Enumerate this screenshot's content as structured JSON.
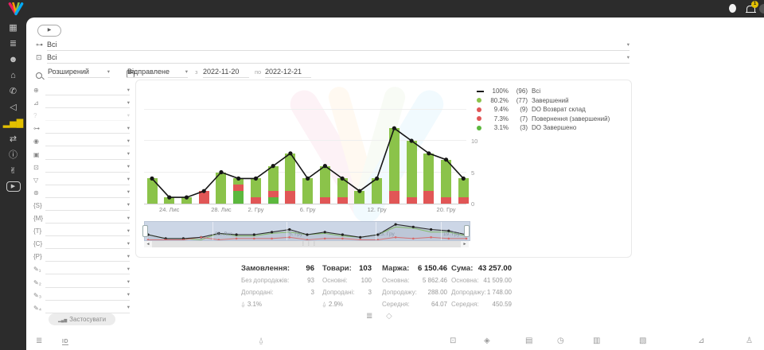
{
  "topbar": {
    "notification_count": "1"
  },
  "sidebar": {
    "items": [
      {
        "name": "dashboard",
        "glyph": "▦"
      },
      {
        "name": "orders",
        "glyph": "≣"
      },
      {
        "name": "customers",
        "glyph": "☻"
      },
      {
        "name": "company",
        "glyph": "⌂"
      },
      {
        "name": "calls",
        "glyph": "✆"
      },
      {
        "name": "announcements",
        "glyph": "◁"
      },
      {
        "name": "analytics",
        "glyph": "▂▅▇",
        "active": true
      },
      {
        "name": "integrations",
        "glyph": "⇄"
      },
      {
        "name": "info",
        "glyph": "ⓘ"
      },
      {
        "name": "partners",
        "glyph": "✌"
      },
      {
        "name": "video",
        "glyph": "▶",
        "boxed": true
      }
    ]
  },
  "header": {
    "play_glyph": "▶",
    "row1": {
      "glyph": "⊶",
      "value": "Всі"
    },
    "row2": {
      "glyph": "⊡",
      "value": "Всі"
    },
    "search": {
      "mode": "Розширений",
      "type": "Відправлене",
      "from_label": "з",
      "date_from": "2022-11-20",
      "to_label": "по",
      "date_to": "2022-12-21"
    }
  },
  "filters": {
    "apply_label": "Застосувати",
    "items": [
      {
        "icon": "globe-icon",
        "glyph": "⊕"
      },
      {
        "icon": "ramp-icon",
        "glyph": "⊿"
      },
      {
        "icon": "question-icon",
        "glyph": "?",
        "disabled": true
      },
      {
        "icon": "nodes-icon",
        "glyph": "⊶"
      },
      {
        "icon": "fingerprint-icon",
        "glyph": "◉"
      },
      {
        "icon": "package-icon",
        "glyph": "▣"
      },
      {
        "icon": "banknote-icon",
        "glyph": "⊡"
      },
      {
        "icon": "funnel-icon",
        "glyph": "▽"
      },
      {
        "icon": "globe-grid-icon",
        "glyph": "⊛"
      },
      {
        "icon": "bracket-s-icon",
        "glyph": "{S}"
      },
      {
        "icon": "bracket-m-icon",
        "glyph": "{M}"
      },
      {
        "icon": "bracket-t-icon",
        "glyph": "{T}"
      },
      {
        "icon": "bracket-c-icon",
        "glyph": "{C}"
      },
      {
        "icon": "bracket-p-icon",
        "glyph": "{P}"
      },
      {
        "icon": "pencil-1-icon",
        "glyph": "✎₁"
      },
      {
        "icon": "pencil-2-icon",
        "glyph": "✎₂"
      },
      {
        "icon": "pencil-3-icon",
        "glyph": "✎₃"
      },
      {
        "icon": "pencil-4-icon",
        "glyph": "✎₄"
      }
    ]
  },
  "chart_data": {
    "type": "bar",
    "subtype": "stacked bars with total line overlay",
    "n_points": 19,
    "x_tick_labels": [
      "24. Лис",
      "28. Лис",
      "2. Гру",
      "6. Гру",
      "12. Гру",
      "20. Гру"
    ],
    "x_tick_indexes": [
      1,
      4,
      6,
      9,
      13,
      17
    ],
    "y_ticks": [
      "0",
      "5",
      "10"
    ],
    "ylim": [
      0,
      15
    ],
    "series": [
      {
        "name": "Всі",
        "type": "line",
        "color": "#161616",
        "values": [
          4,
          1,
          1,
          2,
          5,
          4,
          4,
          6,
          8,
          4,
          6,
          4,
          2,
          4,
          12,
          10,
          8,
          7,
          4
        ]
      },
      {
        "name": "Завершений",
        "type": "bar",
        "color": "#8bc34a",
        "values": [
          4,
          1,
          1,
          0,
          5,
          1,
          3,
          4,
          6,
          4,
          5,
          3,
          2,
          4,
          10,
          9,
          6,
          6,
          3
        ]
      },
      {
        "name": "DO Возврат склад",
        "type": "bar",
        "color": "#e15656",
        "values": [
          0,
          0,
          0,
          0,
          0,
          0,
          1,
          1,
          0,
          0,
          1,
          1,
          0,
          0,
          2,
          1,
          0,
          1,
          1
        ]
      },
      {
        "name": "Повернення (завершений)",
        "type": "bar",
        "color": "#e15656",
        "values": [
          0,
          0,
          0,
          2,
          0,
          1,
          0,
          0,
          2,
          0,
          0,
          0,
          0,
          0,
          0,
          0,
          2,
          0,
          0
        ]
      },
      {
        "name": "DO Завершено",
        "type": "bar",
        "color": "#5cb83e",
        "values": [
          0,
          0,
          0,
          0,
          0,
          2,
          0,
          1,
          0,
          0,
          0,
          0,
          0,
          0,
          0,
          0,
          0,
          0,
          0
        ]
      }
    ],
    "stack_order_bottom_to_top": [
      "DO Завершено",
      "Повернення (завершений)",
      "DO Возврат склад",
      "Завершений"
    ],
    "navigator_labels": [
      "28. Лис",
      "5. Гру",
      "13. Гру",
      "19. Гру"
    ]
  },
  "legend": {
    "items": [
      {
        "type": "line",
        "color": "#1a1a1a",
        "pct": "100%",
        "count": "(96)",
        "label": "Всі"
      },
      {
        "type": "dot",
        "color": "#8bc34a",
        "pct": "80.2%",
        "count": "(77)",
        "label": "Завершений"
      },
      {
        "type": "dot",
        "color": "#e15656",
        "pct": "9.4%",
        "count": "(9)",
        "label": "DO Возврат склад"
      },
      {
        "type": "dot",
        "color": "#e15656",
        "pct": "7.3%",
        "count": "(7)",
        "label": "Повернення (завершений)"
      },
      {
        "type": "dot",
        "color": "#5cb83e",
        "pct": "3.1%",
        "count": "(3)",
        "label": "DO Завершено"
      }
    ]
  },
  "stats": {
    "columns": [
      {
        "title": "Замовлення:",
        "value": "96",
        "rows": [
          {
            "label": "Без допродажів:",
            "value": "93"
          },
          {
            "label": "Допродані:",
            "value": "3"
          }
        ],
        "footer_value": "3.1%"
      },
      {
        "title": "Товари:",
        "value": "103",
        "rows": [
          {
            "label": "Основні:",
            "value": "100"
          },
          {
            "label": "Допродані:",
            "value": "3"
          }
        ],
        "footer_value": "2.9%"
      },
      {
        "title": "Маржа:",
        "value": "6 150.46",
        "rows": [
          {
            "label": "Основна:",
            "value": "5 862.46"
          },
          {
            "label": "Допродажу:",
            "value": "288.00"
          },
          {
            "label": "Середня:",
            "value": "64.07"
          }
        ]
      },
      {
        "title": "Сума:",
        "value": "43 257.00",
        "rows": [
          {
            "label": "Основна:",
            "value": "41 509.00"
          },
          {
            "label": "Допродажу:",
            "value": "1 748.00"
          },
          {
            "label": "Середня:",
            "value": "450.59"
          }
        ]
      }
    ]
  },
  "view_toggles": [
    {
      "name": "list-view-icon",
      "glyph": "≣"
    },
    {
      "name": "cube-view-icon",
      "glyph": "◇"
    }
  ],
  "toolbar": {
    "icons": [
      {
        "name": "list-icon",
        "glyph": "≣"
      },
      {
        "name": "id-icon",
        "glyph": "ID"
      },
      {
        "name": "bag-icon",
        "glyph": "⍙"
      },
      {
        "name": "banknote-icon",
        "glyph": "⊡"
      },
      {
        "name": "package-icon",
        "glyph": "◈"
      },
      {
        "name": "calendar-icon",
        "glyph": "▤"
      },
      {
        "name": "stopwatch-icon",
        "glyph": "◷"
      },
      {
        "name": "calendar-check-icon",
        "glyph": "▥"
      },
      {
        "name": "calendar-edit-icon",
        "glyph": "▧"
      },
      {
        "name": "ramp-icon",
        "glyph": "⊿"
      },
      {
        "name": "person-icon",
        "glyph": "♙"
      }
    ]
  },
  "ui": {
    "caret": "▾",
    "scroll_left": "◄",
    "scroll_right": "►",
    "grip": "⋮⋮⋮",
    "basket_glyph": "⍙",
    "apply_icon": "▂▄▆",
    "colors": {
      "accent_yellow": "#e3c000",
      "bar_green": "#8bc34a",
      "bar_red": "#e15656",
      "line_black": "#161616",
      "navigator_bg": "#ccd6e6",
      "sidebar_bg": "#2c2c2c"
    }
  }
}
